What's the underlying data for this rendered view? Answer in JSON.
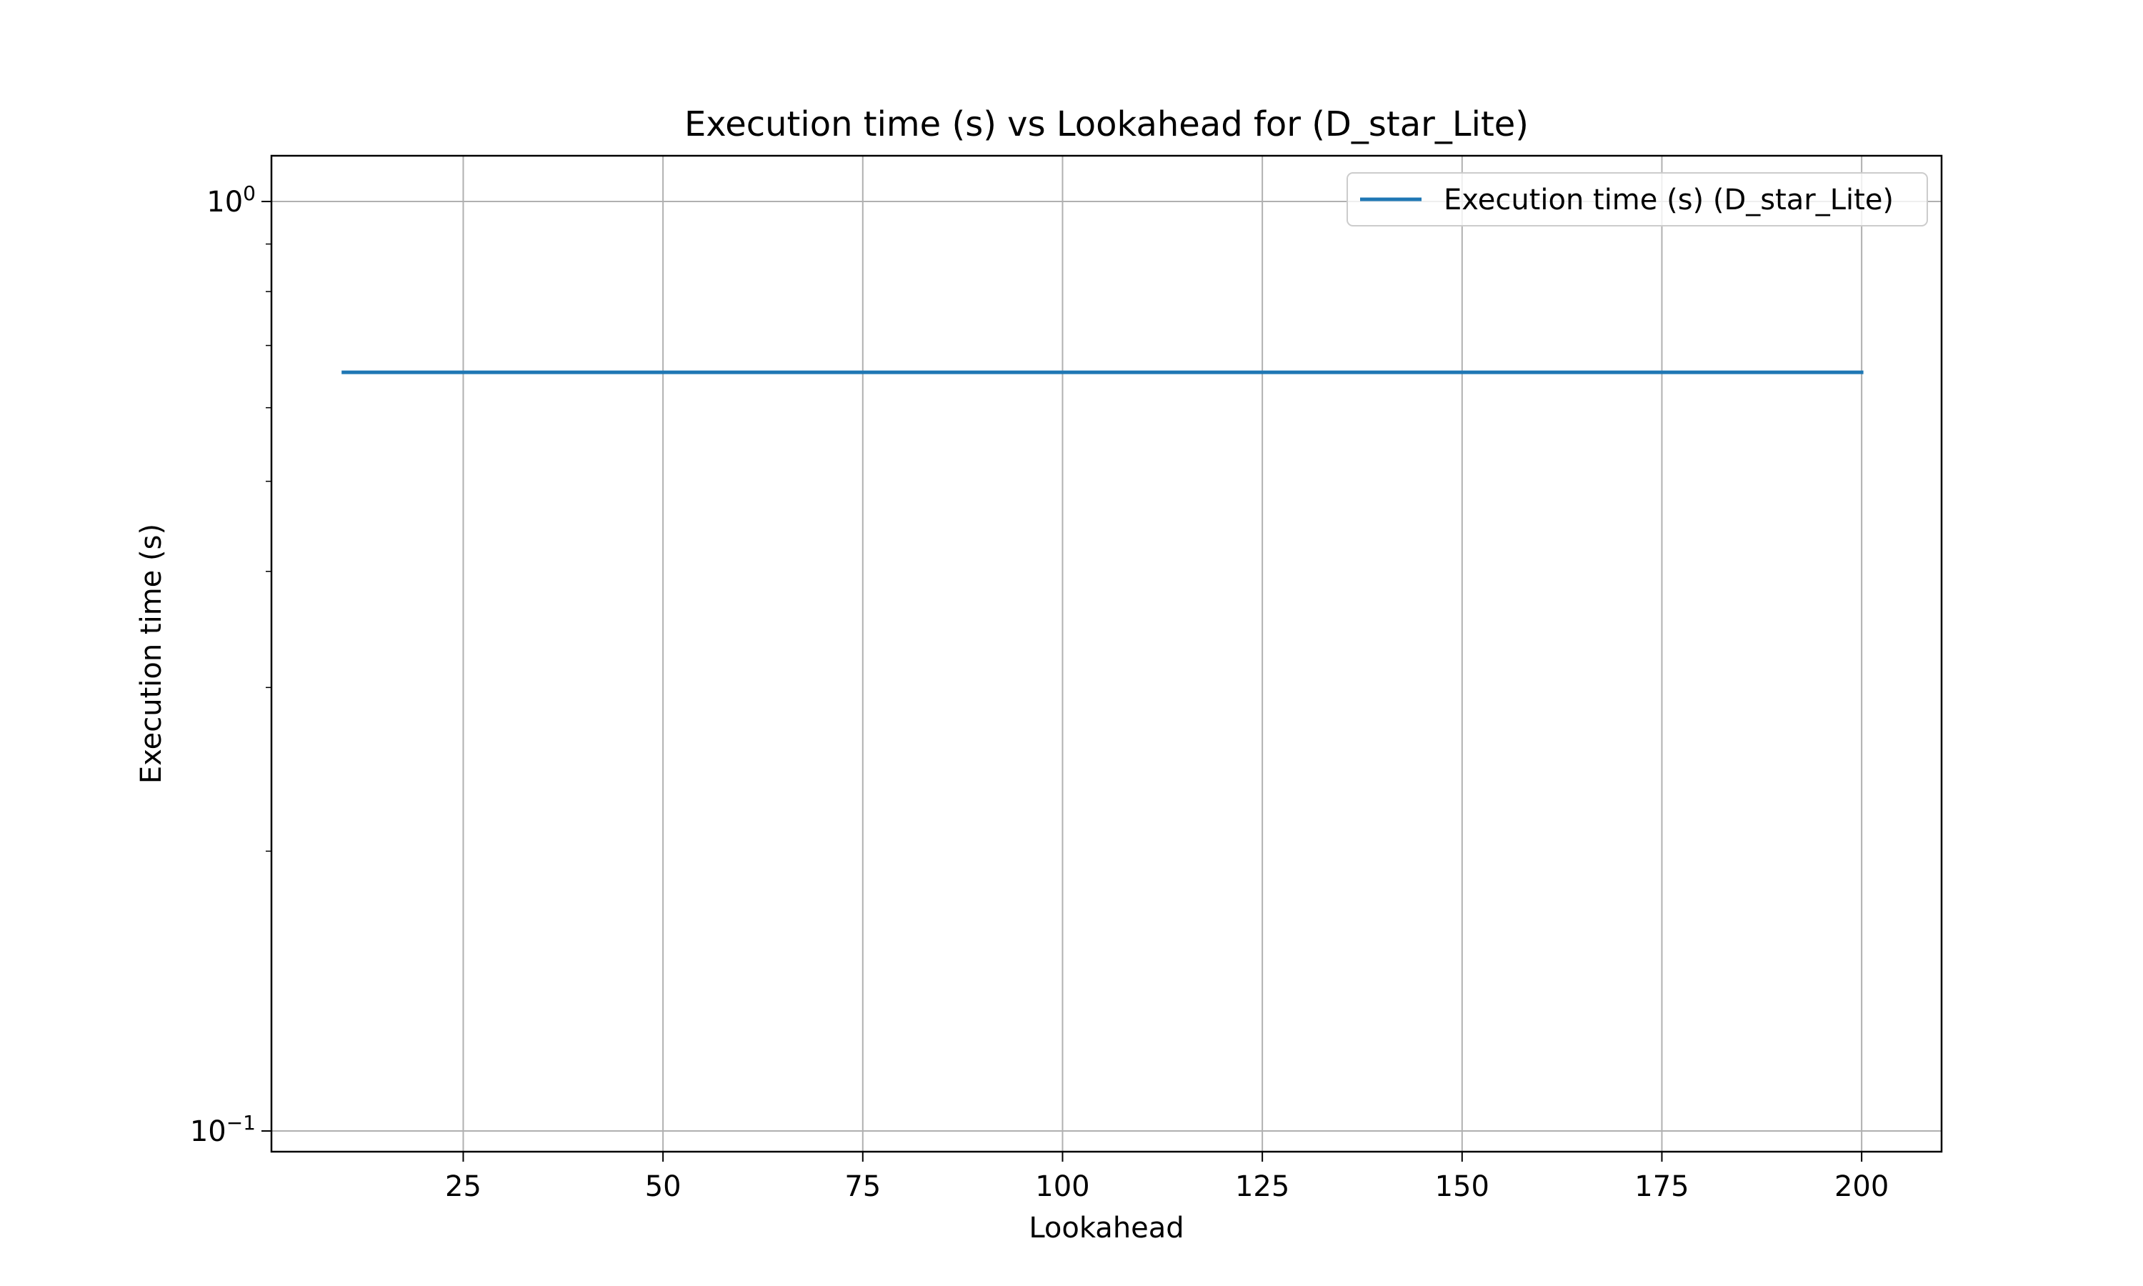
{
  "chart_data": {
    "type": "line",
    "title": "Execution time (s) vs Lookahead for  (D_star_Lite)",
    "xlabel": "Lookahead",
    "ylabel": "Execution time (s)",
    "xlim": [
      1,
      210
    ],
    "ylim": [
      0.095,
      1.12
    ],
    "yscale": "log",
    "grid": true,
    "legend_position": "top-right",
    "x_ticks": [
      25,
      50,
      75,
      100,
      125,
      150,
      175,
      200
    ],
    "y_major_ticks": [
      {
        "value": 0.1,
        "base": "10",
        "exp": "−1"
      },
      {
        "value": 1,
        "base": "10",
        "exp": "0"
      }
    ],
    "series": [
      {
        "name": "Execution time (s) (D_star_Lite)",
        "color": "#1f77b4",
        "x": [
          10,
          20,
          30,
          40,
          50,
          60,
          70,
          80,
          90,
          100,
          110,
          120,
          130,
          140,
          150,
          160,
          170,
          180,
          190,
          200
        ],
        "y": [
          0.655,
          0.655,
          0.655,
          0.655,
          0.655,
          0.655,
          0.655,
          0.655,
          0.655,
          0.655,
          0.655,
          0.655,
          0.655,
          0.655,
          0.655,
          0.655,
          0.655,
          0.655,
          0.655,
          0.655
        ]
      }
    ]
  }
}
